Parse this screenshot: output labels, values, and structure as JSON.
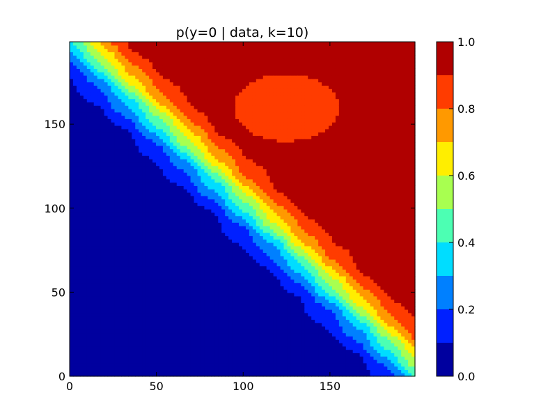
{
  "chart_data": {
    "type": "heatmap",
    "title": "p(y=0 | data, k=10)",
    "xlabel": "",
    "ylabel": "",
    "xlim": [
      0,
      199
    ],
    "ylim": [
      0,
      199
    ],
    "xticks": [
      0,
      50,
      100,
      150
    ],
    "yticks": [
      0,
      50,
      100,
      150
    ],
    "xtick_labels": [
      "0",
      "50",
      "100",
      "150"
    ],
    "ytick_labels": [
      "0",
      "50",
      "100",
      "150"
    ],
    "grid": false,
    "colorbar": {
      "levels": [
        0.0,
        0.1,
        0.2,
        0.3,
        0.4,
        0.5,
        0.6,
        0.7,
        0.8,
        0.9,
        1.0
      ],
      "tick_values": [
        0.0,
        0.2,
        0.4,
        0.6,
        0.8,
        1.0
      ],
      "tick_labels": [
        "0.0",
        "0.2",
        "0.4",
        "0.6",
        "0.8",
        "1.0"
      ],
      "colors": [
        "#00009f",
        "#0020ff",
        "#0080ff",
        "#00ddff",
        "#4cffb3",
        "#a8ff50",
        "#ffee00",
        "#ff9900",
        "#ff3c00",
        "#b00000"
      ]
    },
    "boundary_line": {
      "x": [
        0,
        199
      ],
      "y": [
        199,
        0
      ]
    },
    "feature_seed": {
      "x": 125,
      "y": 160,
      "value": 0.85
    }
  }
}
